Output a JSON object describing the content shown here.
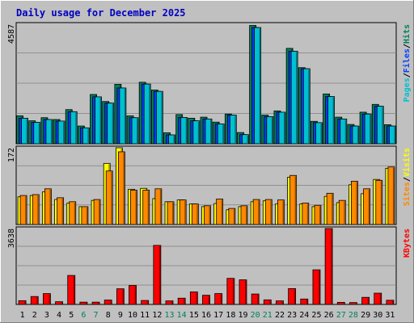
{
  "title": "Daily usage for December 2025",
  "colors": {
    "background": "#C0C0C0",
    "title": "#0000C0",
    "hits": "#00805C",
    "files": "#0040FF",
    "pages": "#00C0D0",
    "visits": "#FFFF00",
    "sites": "#FF8800",
    "kbytes": "#FF0000",
    "weekday_label": "#000000",
    "weekend_label": "#00805C",
    "gridline": "#808080"
  },
  "chart_data": [
    {
      "type": "bar",
      "panel": "hits-files-pages",
      "ymax_label": "4587",
      "ylim": [
        0,
        4587
      ],
      "grid": true,
      "legend": [
        {
          "name": "Pages",
          "color": "#00C0D0"
        },
        {
          "name": "/",
          "color": "#000000"
        },
        {
          "name": "Files",
          "color": "#0040FF"
        },
        {
          "name": "/",
          "color": "#000000"
        },
        {
          "name": "Hits",
          "color": "#00805C"
        }
      ],
      "categories": [
        "1",
        "2",
        "3",
        "4",
        "5",
        "6",
        "7",
        "8",
        "9",
        "10",
        "11",
        "12",
        "13",
        "14",
        "15",
        "16",
        "17",
        "18",
        "19",
        "20",
        "21",
        "22",
        "23",
        "24",
        "25",
        "26",
        "27",
        "28",
        "29",
        "30",
        "31"
      ],
      "series": [
        {
          "name": "Hits",
          "values": [
            1070,
            880,
            1000,
            930,
            1310,
            680,
            1890,
            1620,
            2280,
            1070,
            2360,
            2060,
            420,
            1120,
            980,
            1020,
            830,
            1140,
            430,
            4540,
            1100,
            1260,
            3660,
            2920,
            860,
            1910,
            1020,
            740,
            1210,
            1510,
            730
          ]
        },
        {
          "name": "Files",
          "values": [
            980,
            820,
            930,
            870,
            1230,
            610,
            1800,
            1560,
            2140,
            1000,
            2290,
            2010,
            340,
            1010,
            880,
            950,
            760,
            1100,
            350,
            4460,
            1040,
            1210,
            3550,
            2880,
            810,
            1810,
            950,
            680,
            1140,
            1440,
            680
          ]
        },
        {
          "name": "Pages",
          "values": [
            980,
            820,
            930,
            870,
            1230,
            610,
            1800,
            1560,
            2140,
            1000,
            2290,
            2010,
            340,
            1010,
            880,
            950,
            760,
            1100,
            350,
            4460,
            1040,
            1210,
            3550,
            2880,
            810,
            1810,
            950,
            680,
            1140,
            1440,
            680
          ]
        }
      ]
    },
    {
      "type": "bar",
      "panel": "visits-sites",
      "ymax_label": "172",
      "ylim": [
        0,
        172
      ],
      "grid": true,
      "legend": [
        {
          "name": "Sites",
          "color": "#FF8800"
        },
        {
          "name": "/",
          "color": "#000000"
        },
        {
          "name": "Visits",
          "color": "#FFFF00"
        }
      ],
      "categories": [
        "1",
        "2",
        "3",
        "4",
        "5",
        "6",
        "7",
        "8",
        "9",
        "10",
        "11",
        "12",
        "13",
        "14",
        "15",
        "16",
        "17",
        "18",
        "19",
        "20",
        "21",
        "22",
        "23",
        "24",
        "25",
        "26",
        "27",
        "28",
        "29",
        "30",
        "31"
      ],
      "series": [
        {
          "name": "Visits",
          "values": [
            62,
            65,
            73,
            56,
            48,
            40,
            54,
            137,
            172,
            79,
            81,
            58,
            51,
            55,
            46,
            40,
            47,
            33,
            40,
            51,
            53,
            46,
            106,
            46,
            40,
            63,
            49,
            89,
            69,
            101,
            126
          ]
        },
        {
          "name": "Sites",
          "values": [
            65,
            67,
            80,
            60,
            51,
            40,
            56,
            120,
            163,
            77,
            77,
            80,
            51,
            55,
            46,
            42,
            57,
            36,
            42,
            56,
            56,
            55,
            110,
            48,
            43,
            70,
            54,
            97,
            80,
            99,
            129
          ]
        }
      ]
    },
    {
      "type": "bar",
      "panel": "kbytes",
      "ymax_label": "3638",
      "ylim": [
        0,
        3638
      ],
      "grid": true,
      "legend": [
        {
          "name": "KBytes",
          "color": "#FF0000"
        }
      ],
      "categories": [
        "1",
        "2",
        "3",
        "4",
        "5",
        "6",
        "7",
        "8",
        "9",
        "10",
        "11",
        "12",
        "13",
        "14",
        "15",
        "16",
        "17",
        "18",
        "19",
        "20",
        "21",
        "22",
        "23",
        "24",
        "25",
        "26",
        "27",
        "28",
        "29",
        "30",
        "31"
      ],
      "series": [
        {
          "name": "KBytes",
          "values": [
            180,
            380,
            520,
            130,
            1390,
            110,
            110,
            210,
            750,
            910,
            190,
            2830,
            170,
            300,
            600,
            440,
            520,
            1250,
            1180,
            500,
            220,
            170,
            760,
            260,
            1660,
            3638,
            100,
            90,
            340,
            540,
            200
          ]
        }
      ]
    }
  ],
  "x_labels": [
    "1",
    "2",
    "3",
    "4",
    "5",
    "6",
    "7",
    "8",
    "9",
    "10",
    "11",
    "12",
    "13",
    "14",
    "15",
    "16",
    "17",
    "18",
    "19",
    "20",
    "21",
    "22",
    "23",
    "24",
    "25",
    "26",
    "27",
    "28",
    "29",
    "30",
    "31"
  ],
  "weekend_days": [
    "6",
    "7",
    "13",
    "14",
    "20",
    "21",
    "27",
    "28"
  ]
}
